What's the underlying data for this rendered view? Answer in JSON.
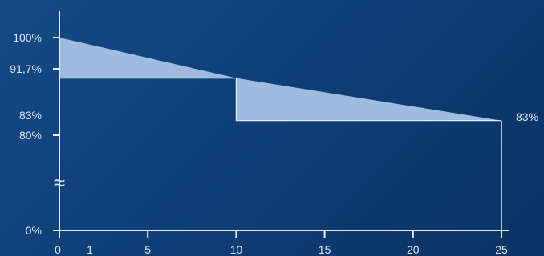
{
  "chart_data": {
    "type": "area",
    "title": "",
    "xlabel": "",
    "ylabel": "",
    "grid": false,
    "x_ticks": [
      "0",
      "1",
      "5",
      "10",
      "15",
      "20",
      "25"
    ],
    "y_ticks": [
      "0%",
      "80%",
      "83%",
      "91,7%",
      "100%"
    ],
    "axis_break_symbol": "≈",
    "end_label": "83%",
    "colors": {
      "fill": "#9fbcdf",
      "axis": "#e6eef8",
      "text": "#dde8f5"
    },
    "series": [
      {
        "values": [
          {
            "x": 0,
            "y": 100
          },
          {
            "x": 10,
            "y": 91.7
          },
          {
            "x": 25,
            "y": 83
          }
        ]
      }
    ],
    "shaded_regions": [
      {
        "x_from": 0,
        "x_to": 10,
        "y_floor": 91.7
      },
      {
        "x_from": 10,
        "x_to": 25,
        "y_floor": 83
      }
    ],
    "step_line": [
      {
        "x": 0,
        "y": 91.7
      },
      {
        "x": 10,
        "y": 91.7
      },
      {
        "x": 10,
        "y": 83
      },
      {
        "x": 25,
        "y": 83
      }
    ]
  }
}
